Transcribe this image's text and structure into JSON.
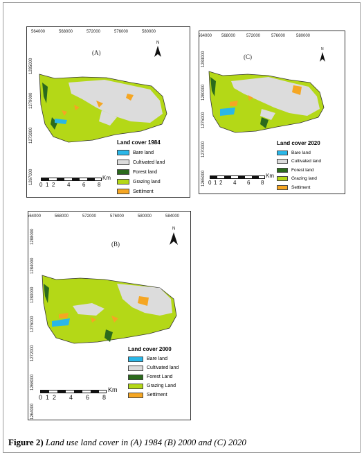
{
  "caption": {
    "prefix": "Figure 2)",
    "text": "Land use land cover in (A) 1984 (B) 2000 and (C) 2020"
  },
  "colors": {
    "bare_land": "#2ab7e8",
    "cultivated_land": "#dcdcdc",
    "forest_land": "#2b6a1c",
    "grazing_land": "#b4d817",
    "settlement": "#f5a623"
  },
  "north_label": "N",
  "panels": {
    "a": {
      "label": "(A)",
      "x_ticks": [
        "564000",
        "568000",
        "572000",
        "576000",
        "580000"
      ],
      "y_ticks": [
        "1285000",
        "1279000",
        "1273000",
        "1267000"
      ],
      "legend_title": "Land cover 1984",
      "legend_items": [
        "Bare land",
        "Cultivated land",
        "Forest land",
        "Grazing  land",
        "Settlment"
      ],
      "scale_unit": "Km",
      "scale_ticks": [
        "0",
        "1",
        "2",
        "4",
        "6",
        "8"
      ]
    },
    "c": {
      "label": "(C)",
      "x_ticks": [
        "564000",
        "568000",
        "572000",
        "576000",
        "580000"
      ],
      "y_ticks": [
        "1283000",
        "1280000",
        "1275000",
        "1270000",
        "1265000"
      ],
      "legend_title": "Land cover 2020",
      "legend_items": [
        "Bare land",
        "Cultivated land",
        "Forest land",
        "Grazing land",
        "Settlment"
      ],
      "scale_unit": "Km",
      "scale_ticks": [
        "0",
        "1",
        "2",
        "4",
        "6",
        "8"
      ]
    },
    "b": {
      "label": "(B)",
      "x_ticks": [
        "564000",
        "568000",
        "572000",
        "576000",
        "580000",
        "584000"
      ],
      "y_ticks": [
        "1288000",
        "1284000",
        "1280000",
        "1276000",
        "1272000",
        "1268000",
        "1264000"
      ],
      "legend_title": "Land cover 2000",
      "legend_items": [
        "Bare land",
        "Cultivated  land",
        "Forest Land",
        "Grazing Land",
        "Settlment"
      ],
      "scale_unit": "Km",
      "scale_ticks": [
        "0",
        "1",
        "2",
        "4",
        "6",
        "8"
      ]
    }
  }
}
